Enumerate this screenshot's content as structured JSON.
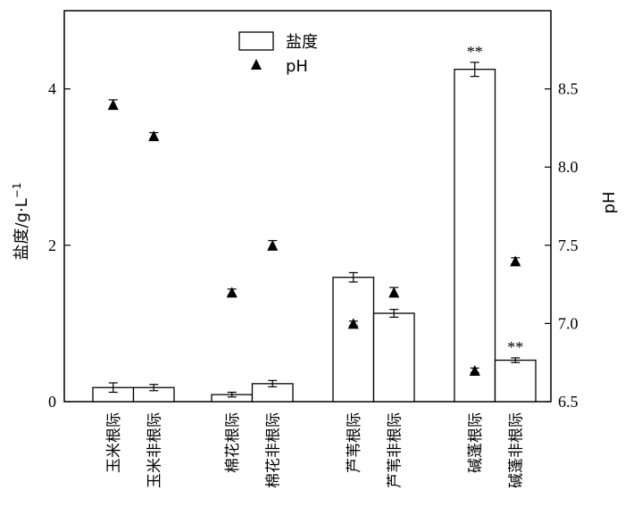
{
  "chart_data": {
    "type": "bar",
    "categories": [
      "玉米根际",
      "玉米非根际",
      "棉花根际",
      "棉花非根际",
      "芦苇根际",
      "芦苇非根际",
      "碱蓬根际",
      "碱蓬非根际"
    ],
    "groups": [
      [
        0,
        1
      ],
      [
        2,
        3
      ],
      [
        4,
        5
      ],
      [
        6,
        7
      ]
    ],
    "series": [
      {
        "name": "盐度",
        "kind": "bar",
        "axis": "left",
        "values": [
          0.18,
          0.18,
          0.09,
          0.23,
          1.59,
          1.13,
          4.25,
          0.53
        ],
        "errors": [
          0.06,
          0.04,
          0.03,
          0.04,
          0.06,
          0.05,
          0.09,
          0.03
        ],
        "labels": [
          "",
          "",
          "",
          "",
          "",
          "",
          "**",
          "**"
        ]
      },
      {
        "name": "pH",
        "kind": "scatter",
        "marker": "triangle",
        "axis": "right",
        "values": [
          8.4,
          8.2,
          7.2,
          7.5,
          7.0,
          7.2,
          6.7,
          7.4
        ],
        "errors": [
          0.03,
          0.02,
          0.02,
          0.03,
          0.015,
          0.03,
          0.015,
          0.02
        ]
      }
    ],
    "ylabel": "盐度/g·L",
    "ylabel_sup": "−1",
    "y2label": "pH",
    "ylim": [
      0,
      5
    ],
    "y2lim": [
      6.5,
      9.0
    ],
    "yticks": [
      "0",
      "2",
      "4"
    ],
    "y2ticks": [
      "6.5",
      "7.0",
      "7.5",
      "8.0",
      "8.5"
    ],
    "legend": {
      "position": "top-center"
    },
    "colors": {
      "bar_fill": "#ffffff",
      "stroke": "#000000",
      "marker": "#000000"
    }
  }
}
